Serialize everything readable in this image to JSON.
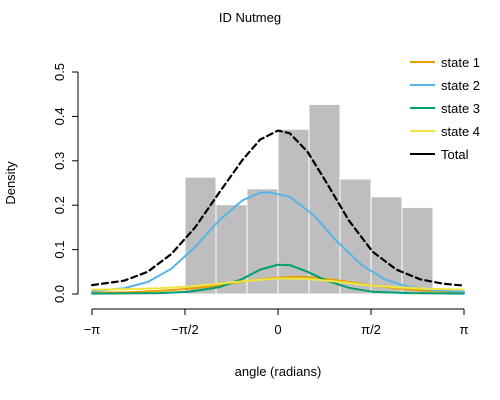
{
  "chart_data": {
    "type": "histogram-with-density-curves",
    "title": "ID Nutmeg",
    "xlabel": "angle (radians)",
    "ylabel": "Density",
    "xlim": [
      -3.14159,
      3.14159
    ],
    "ylim": [
      0,
      0.5
    ],
    "x_ticks": [
      {
        "value": -3.14159,
        "label": "−π"
      },
      {
        "value": -1.5708,
        "label": "−π/2"
      },
      {
        "value": 0,
        "label": "0"
      },
      {
        "value": 1.5708,
        "label": "π/2"
      },
      {
        "value": 3.14159,
        "label": "π"
      }
    ],
    "y_ticks": [
      {
        "value": 0.0,
        "label": "0.0"
      },
      {
        "value": 0.1,
        "label": "0.1"
      },
      {
        "value": 0.2,
        "label": "0.2"
      },
      {
        "value": 0.3,
        "label": "0.3"
      },
      {
        "value": 0.4,
        "label": "0.4"
      },
      {
        "value": 0.5,
        "label": "0.5"
      }
    ],
    "histogram": {
      "color": "#bebebe",
      "bins": [
        {
          "x0": -1.5708,
          "x1": -1.0472,
          "density": 0.263
        },
        {
          "x0": -1.0472,
          "x1": -0.5236,
          "density": 0.201
        },
        {
          "x0": -0.5236,
          "x1": 0.0,
          "density": 0.237
        },
        {
          "x0": 0.0,
          "x1": 0.5236,
          "density": 0.371
        },
        {
          "x0": 0.5236,
          "x1": 1.0472,
          "density": 0.427
        },
        {
          "x0": 1.0472,
          "x1": 1.5708,
          "density": 0.259
        },
        {
          "x0": 1.5708,
          "x1": 2.0944,
          "density": 0.219
        },
        {
          "x0": 2.0944,
          "x1": 2.618,
          "density": 0.195
        }
      ]
    },
    "series": [
      {
        "name": "state 1",
        "color": "#e69f00",
        "dash": false,
        "points": [
          [
            -3.14,
            0.003
          ],
          [
            -2.5,
            0.004
          ],
          [
            -2.0,
            0.007
          ],
          [
            -1.5,
            0.012
          ],
          [
            -1.0,
            0.019
          ],
          [
            -0.5,
            0.03
          ],
          [
            0.0,
            0.037
          ],
          [
            0.3,
            0.039
          ],
          [
            0.6,
            0.037
          ],
          [
            1.0,
            0.031
          ],
          [
            1.5,
            0.021
          ],
          [
            2.0,
            0.013
          ],
          [
            2.5,
            0.007
          ],
          [
            3.14,
            0.004
          ]
        ]
      },
      {
        "name": "state 2",
        "color": "#56b4e9",
        "dash": false,
        "points": [
          [
            -3.14,
            0.006
          ],
          [
            -2.6,
            0.013
          ],
          [
            -2.2,
            0.027
          ],
          [
            -1.8,
            0.057
          ],
          [
            -1.4,
            0.106
          ],
          [
            -1.0,
            0.165
          ],
          [
            -0.6,
            0.211
          ],
          [
            -0.3,
            0.228
          ],
          [
            -0.15,
            0.229
          ],
          [
            0.2,
            0.219
          ],
          [
            0.6,
            0.178
          ],
          [
            1.0,
            0.118
          ],
          [
            1.4,
            0.067
          ],
          [
            1.8,
            0.033
          ],
          [
            2.2,
            0.016
          ],
          [
            2.6,
            0.009
          ],
          [
            3.14,
            0.005
          ]
        ]
      },
      {
        "name": "state 3",
        "color": "#009e73",
        "dash": false,
        "points": [
          [
            -3.14,
            0.001
          ],
          [
            -2.0,
            0.002
          ],
          [
            -1.5,
            0.005
          ],
          [
            -1.0,
            0.015
          ],
          [
            -0.6,
            0.034
          ],
          [
            -0.3,
            0.055
          ],
          [
            0.0,
            0.066
          ],
          [
            0.2,
            0.065
          ],
          [
            0.5,
            0.05
          ],
          [
            0.8,
            0.031
          ],
          [
            1.2,
            0.014
          ],
          [
            1.6,
            0.005
          ],
          [
            2.2,
            0.002
          ],
          [
            3.14,
            0.001
          ]
        ]
      },
      {
        "name": "state 4",
        "color": "#f0e442",
        "dash": false,
        "points": [
          [
            -3.14,
            0.01
          ],
          [
            -2.5,
            0.011
          ],
          [
            -2.0,
            0.013
          ],
          [
            -1.5,
            0.017
          ],
          [
            -1.0,
            0.023
          ],
          [
            -0.5,
            0.03
          ],
          [
            0.0,
            0.035
          ],
          [
            0.5,
            0.034
          ],
          [
            1.0,
            0.028
          ],
          [
            1.5,
            0.02
          ],
          [
            2.0,
            0.015
          ],
          [
            2.5,
            0.012
          ],
          [
            3.14,
            0.01
          ]
        ]
      },
      {
        "name": "Total",
        "color": "#000000",
        "dash": true,
        "points": [
          [
            -3.14,
            0.02
          ],
          [
            -2.6,
            0.03
          ],
          [
            -2.2,
            0.05
          ],
          [
            -1.8,
            0.09
          ],
          [
            -1.4,
            0.15
          ],
          [
            -1.0,
            0.227
          ],
          [
            -0.6,
            0.302
          ],
          [
            -0.3,
            0.348
          ],
          [
            0.0,
            0.368
          ],
          [
            0.2,
            0.362
          ],
          [
            0.5,
            0.32
          ],
          [
            0.8,
            0.255
          ],
          [
            1.2,
            0.165
          ],
          [
            1.6,
            0.095
          ],
          [
            2.0,
            0.055
          ],
          [
            2.4,
            0.033
          ],
          [
            2.8,
            0.023
          ],
          [
            3.14,
            0.019
          ]
        ]
      }
    ],
    "legend_position": "top-right",
    "grid": false
  }
}
